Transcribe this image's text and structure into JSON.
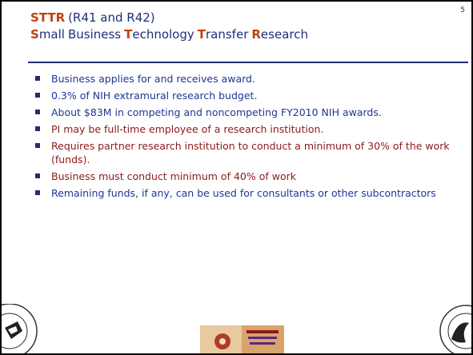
{
  "page_number": "5",
  "title": {
    "line1": {
      "acronym": "STTR",
      "codes": "(R41 and R42)"
    },
    "line2": [
      {
        "initial": "S",
        "rest": "mall"
      },
      {
        "word": "Business"
      },
      {
        "initial": "T",
        "rest": "echnology"
      },
      {
        "initial": "T",
        "rest": "ransfer"
      },
      {
        "initial": "R",
        "rest": "esearch"
      }
    ]
  },
  "bullets": [
    "Business applies for and receives award.",
    "0.3% of NIH extramural research budget.",
    "About $83M in competing and noncompeting FY2010 NIH awards.",
    "PI may be full-time employee of a research institution.",
    "Requires partner research institution to conduct a minimum of 30% of the work (funds).",
    "Business must conduct minimum of 40% of work",
    "Remaining funds, if any, can be used for consultants or other subcontractors"
  ]
}
